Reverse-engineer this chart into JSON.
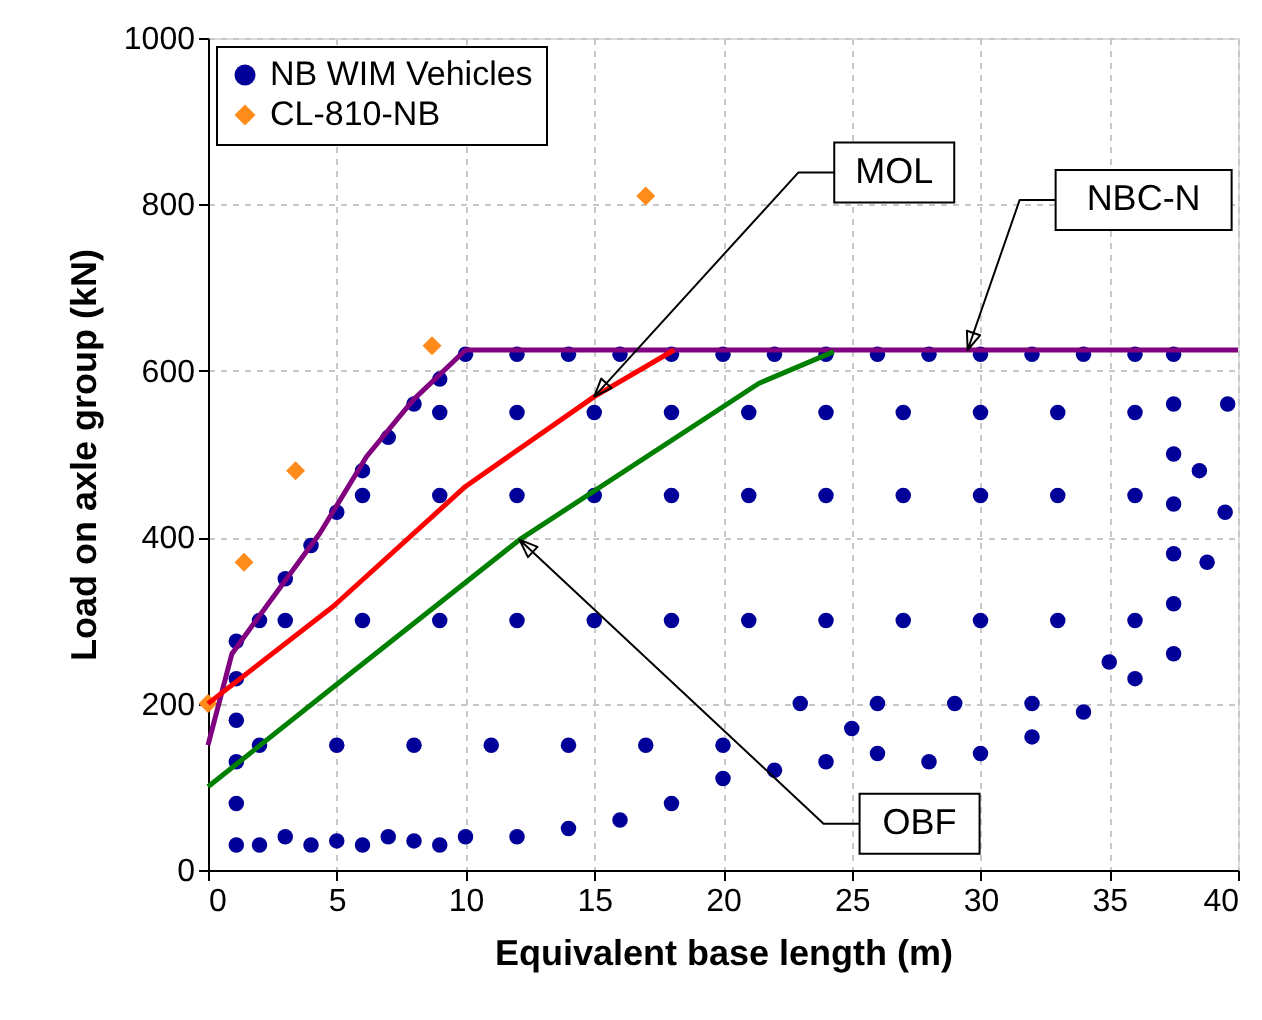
{
  "chart_data": {
    "type": "scatter",
    "xlabel": "Equivalent base length (m)",
    "ylabel": "Load on axle group (kN)",
    "xlim": [
      0,
      40
    ],
    "ylim": [
      0,
      1000
    ],
    "xticks": [
      0,
      5,
      10,
      15,
      20,
      25,
      30,
      35,
      40
    ],
    "yticks": [
      0,
      200,
      400,
      600,
      800,
      1000
    ],
    "grid": true,
    "legend": "top left",
    "series": [
      {
        "name": "NB WIM Vehicles",
        "marker": "circle",
        "color": "#000099",
        "x": [
          1.1,
          1.1,
          1.1,
          1.1,
          1.1,
          1.1,
          2,
          3,
          4,
          5,
          6,
          7,
          8,
          9,
          10,
          12,
          14,
          16,
          18,
          20,
          22,
          24,
          26,
          28,
          30,
          32,
          34,
          36,
          37.5,
          37.5,
          37.5,
          37.5,
          37.5,
          37.5,
          37.5,
          38.5,
          39.5,
          38.8,
          39.6,
          2,
          3,
          4,
          5,
          6,
          7,
          8,
          9,
          10,
          12,
          14,
          16,
          18,
          20,
          22,
          24,
          25,
          26,
          28,
          30,
          32,
          34,
          36,
          2,
          5,
          8,
          11,
          14,
          17,
          20,
          23,
          26,
          29,
          32,
          35,
          3,
          6,
          9,
          12,
          15,
          18,
          21,
          24,
          27,
          30,
          33,
          36,
          6,
          9,
          12,
          15,
          18,
          21,
          24,
          27,
          30,
          33,
          36,
          9,
          12,
          15,
          18,
          21,
          24,
          27,
          30,
          33,
          36
        ],
        "values": [
          30,
          80,
          130,
          180,
          230,
          275,
          300,
          350,
          390,
          430,
          480,
          520,
          560,
          590,
          620,
          620,
          620,
          620,
          620,
          620,
          620,
          620,
          620,
          620,
          620,
          620,
          620,
          620,
          620,
          560,
          500,
          440,
          380,
          320,
          260,
          480,
          430,
          370,
          560,
          30,
          40,
          30,
          35,
          30,
          40,
          35,
          30,
          40,
          40,
          50,
          60,
          80,
          110,
          120,
          130,
          170,
          140,
          130,
          140,
          160,
          190,
          230,
          150,
          150,
          150,
          150,
          150,
          150,
          150,
          200,
          200,
          200,
          200,
          250,
          300,
          300,
          300,
          300,
          300,
          300,
          300,
          300,
          300,
          300,
          300,
          300,
          450,
          450,
          450,
          450,
          450,
          450,
          450,
          450,
          450,
          450,
          450,
          550,
          550,
          550,
          550,
          550,
          550,
          550,
          550,
          550,
          550
        ]
      },
      {
        "name": "CL-810-NB",
        "marker": "diamond",
        "color": "#ff8c1a",
        "x": [
          0,
          1.4,
          3.4,
          8.7,
          17
        ],
        "values": [
          200,
          370,
          480,
          630,
          810
        ]
      },
      {
        "type": "line",
        "color": "#800080",
        "line_style": "solid",
        "x": [
          0,
          0.93,
          2.27,
          4.35,
          6.16,
          7.97,
          10,
          40
        ],
        "values": [
          150,
          260,
          317,
          405,
          497,
          565,
          625,
          625
        ]
      },
      {
        "type": "line",
        "color": "#ff0000",
        "line_style": "solid",
        "x": [
          0,
          4.87,
          10,
          15,
          18.1
        ],
        "values": [
          200,
          317,
          461,
          569,
          625
        ]
      },
      {
        "type": "line",
        "color": "#008000",
        "line_style": "solid",
        "x": [
          0,
          4.87,
          12.1,
          21.4,
          24.3
        ],
        "values": [
          100,
          220,
          397,
          585,
          623
        ]
      }
    ],
    "annotations": [
      {
        "text": "MOL",
        "x": 15,
        "y": 569
      },
      {
        "text": "NBC-N",
        "x": 29.5,
        "y": 625
      },
      {
        "text": "OBF",
        "x": 12.1,
        "y": 397
      }
    ]
  }
}
